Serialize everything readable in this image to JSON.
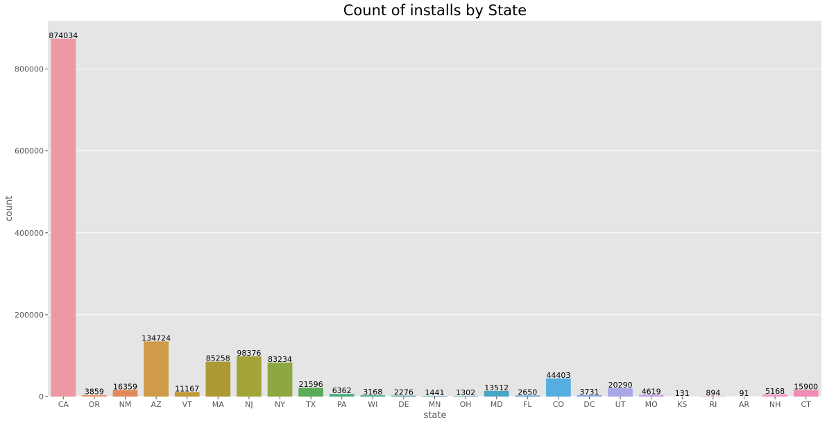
{
  "chart_data": {
    "type": "bar",
    "title": "Count of installs by State",
    "xlabel": "state",
    "ylabel": "count",
    "categories": [
      "CA",
      "OR",
      "NM",
      "AZ",
      "VT",
      "MA",
      "NJ",
      "NY",
      "TX",
      "PA",
      "WI",
      "DE",
      "MN",
      "OH",
      "MD",
      "FL",
      "CO",
      "DC",
      "UT",
      "MO",
      "KS",
      "RI",
      "AR",
      "NH",
      "CT"
    ],
    "values": [
      874034,
      3859,
      16359,
      134724,
      11167,
      85258,
      98376,
      83234,
      21596,
      6362,
      3168,
      2276,
      1441,
      1302,
      13512,
      2650,
      44403,
      3731,
      20290,
      4619,
      131,
      894,
      91,
      5168,
      15900
    ],
    "colors": [
      "#ee98a4",
      "#e6966e",
      "#e08a5a",
      "#cf9a4a",
      "#bf9a38",
      "#ad9a35",
      "#a2a43a",
      "#8da840",
      "#5aac58",
      "#48ac80",
      "#49aa95",
      "#4aa7a1",
      "#4ba8ae",
      "#4aaabc",
      "#49a7c6",
      "#50a5d2",
      "#56aee0",
      "#8aa6e0",
      "#a9a7e6",
      "#c3a2ea",
      "#d89ae6",
      "#e595dc",
      "#ec92d0",
      "#ee93c2",
      "#f08bb3"
    ],
    "ylim": [
      0,
      917735
    ],
    "yticks": [
      0,
      200000,
      400000,
      600000,
      800000
    ],
    "grid": true,
    "background": "#e5e5e5"
  }
}
